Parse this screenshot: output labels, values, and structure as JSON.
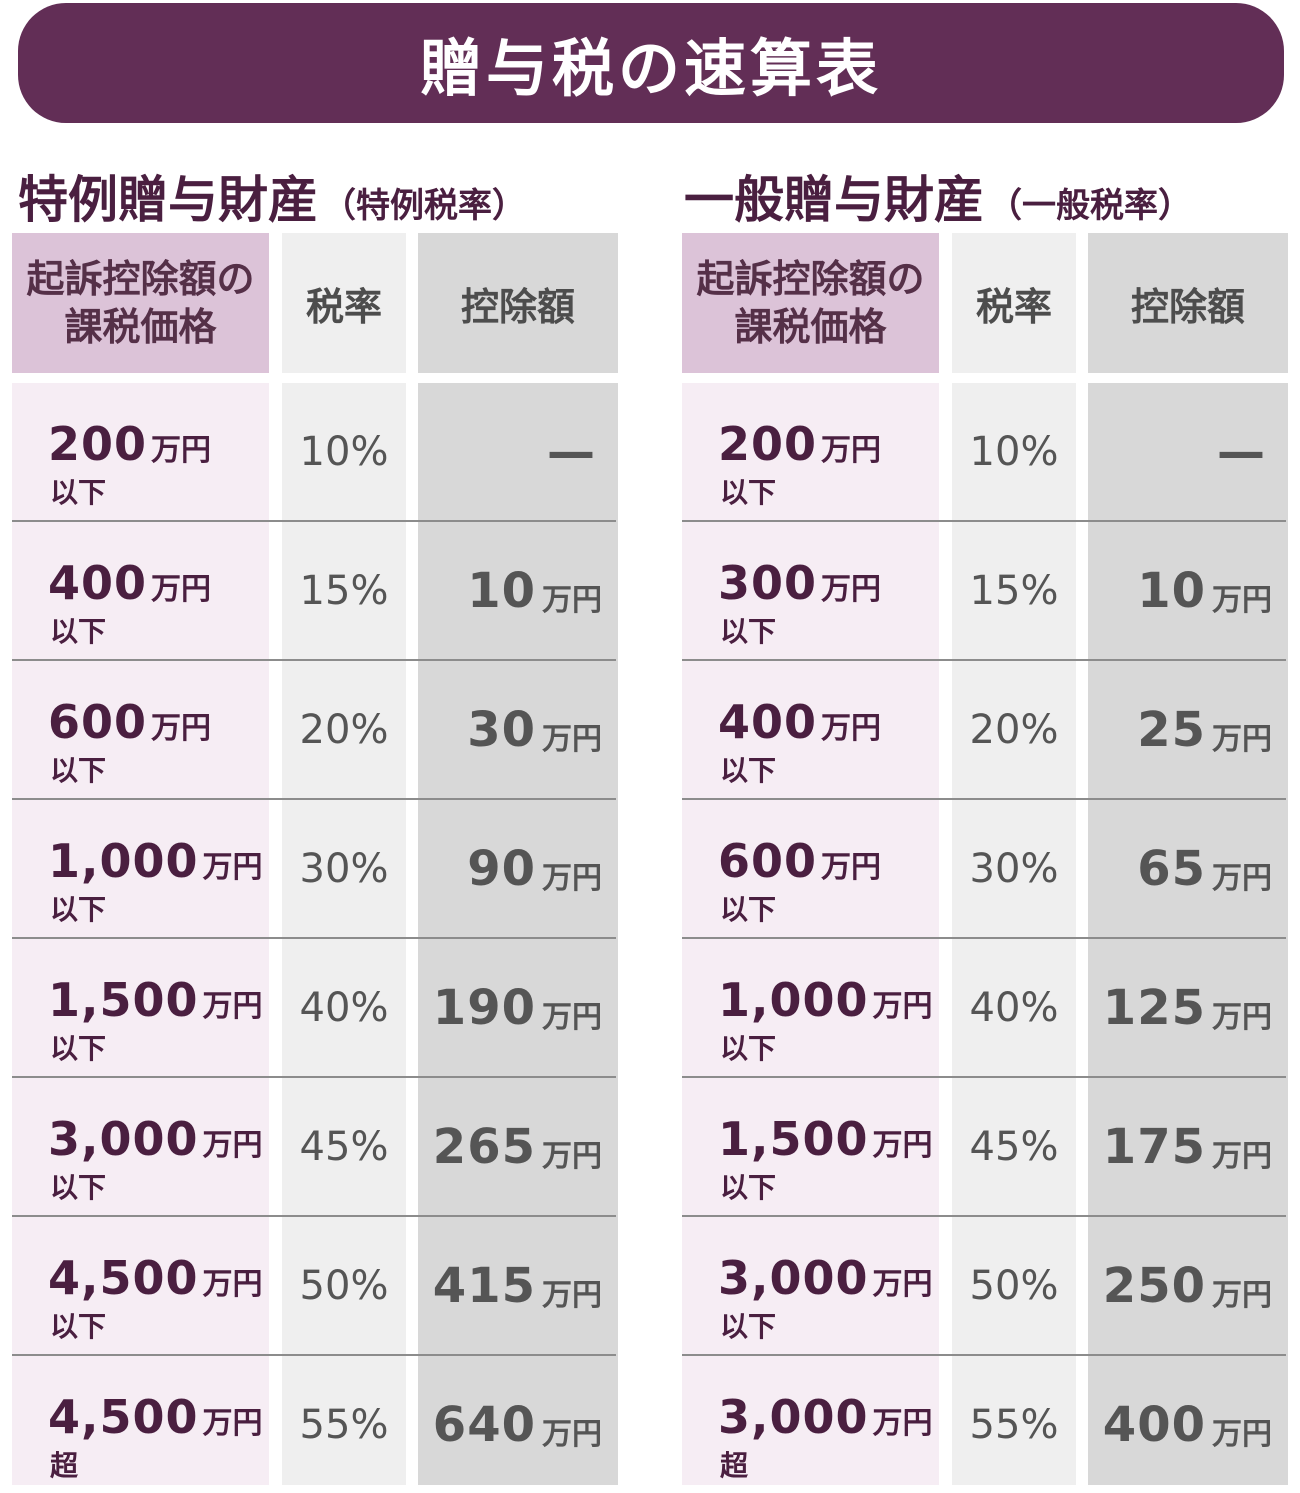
{
  "title": "贈与税の速算表",
  "sections": [
    {
      "title": "特例贈与財産",
      "subtitle": "（特例税率）",
      "headers": [
        "起訴控除額の課税価格",
        "税率",
        "控除額"
      ],
      "rows": [
        {
          "amount": "200",
          "unit": "万円",
          "qualifier": "以下",
          "rate": "10%",
          "deduction": "—",
          "deduction_unit": ""
        },
        {
          "amount": "400",
          "unit": "万円",
          "qualifier": "以下",
          "rate": "15%",
          "deduction": "10",
          "deduction_unit": "万円"
        },
        {
          "amount": "600",
          "unit": "万円",
          "qualifier": "以下",
          "rate": "20%",
          "deduction": "30",
          "deduction_unit": "万円"
        },
        {
          "amount": "1,000",
          "unit": "万円",
          "qualifier": "以下",
          "rate": "30%",
          "deduction": "90",
          "deduction_unit": "万円"
        },
        {
          "amount": "1,500",
          "unit": "万円",
          "qualifier": "以下",
          "rate": "40%",
          "deduction": "190",
          "deduction_unit": "万円"
        },
        {
          "amount": "3,000",
          "unit": "万円",
          "qualifier": "以下",
          "rate": "45%",
          "deduction": "265",
          "deduction_unit": "万円"
        },
        {
          "amount": "4,500",
          "unit": "万円",
          "qualifier": "以下",
          "rate": "50%",
          "deduction": "415",
          "deduction_unit": "万円"
        },
        {
          "amount": "4,500",
          "unit": "万円",
          "qualifier": "超",
          "rate": "55%",
          "deduction": "640",
          "deduction_unit": "万円"
        }
      ]
    },
    {
      "title": "一般贈与財産",
      "subtitle": "（一般税率）",
      "headers": [
        "起訴控除額の課税価格",
        "税率",
        "控除額"
      ],
      "rows": [
        {
          "amount": "200",
          "unit": "万円",
          "qualifier": "以下",
          "rate": "10%",
          "deduction": "—",
          "deduction_unit": ""
        },
        {
          "amount": "300",
          "unit": "万円",
          "qualifier": "以下",
          "rate": "15%",
          "deduction": "10",
          "deduction_unit": "万円"
        },
        {
          "amount": "400",
          "unit": "万円",
          "qualifier": "以下",
          "rate": "20%",
          "deduction": "25",
          "deduction_unit": "万円"
        },
        {
          "amount": "600",
          "unit": "万円",
          "qualifier": "以下",
          "rate": "30%",
          "deduction": "65",
          "deduction_unit": "万円"
        },
        {
          "amount": "1,000",
          "unit": "万円",
          "qualifier": "以下",
          "rate": "40%",
          "deduction": "125",
          "deduction_unit": "万円"
        },
        {
          "amount": "1,500",
          "unit": "万円",
          "qualifier": "以下",
          "rate": "45%",
          "deduction": "175",
          "deduction_unit": "万円"
        },
        {
          "amount": "3,000",
          "unit": "万円",
          "qualifier": "以下",
          "rate": "50%",
          "deduction": "250",
          "deduction_unit": "万円"
        },
        {
          "amount": "3,000",
          "unit": "万円",
          "qualifier": "超",
          "rate": "55%",
          "deduction": "400",
          "deduction_unit": "万円"
        }
      ]
    }
  ],
  "colors": {
    "banner": "#622e56",
    "header_pink": "#dcc3d8",
    "cell_pink": "#f6edf4",
    "cell_light": "#efefef",
    "cell_grey": "#d8d8d8",
    "text_plum": "#4a1f40"
  }
}
